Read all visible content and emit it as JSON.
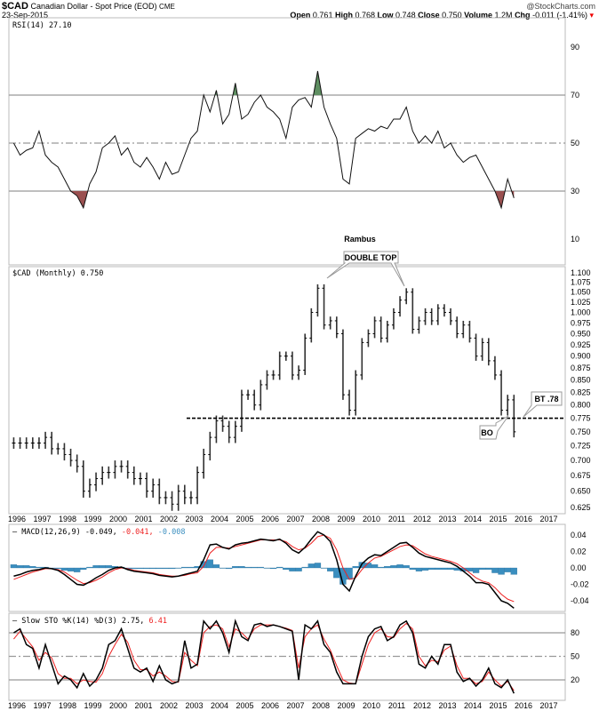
{
  "header": {
    "symbol": "$CAD",
    "name": "Canadian Dollar - Spot Price (EOD)",
    "exchange": "CME",
    "date": "23-Sep-2015",
    "copyright": "@StockCharts.com",
    "open_label": "Open",
    "open": "0.761",
    "high_label": "High",
    "high": "0.768",
    "low_label": "Low",
    "low": "0.748",
    "close_label": "Close",
    "close": "0.750",
    "volume_label": "Volume",
    "volume": "1.2M",
    "chg_label": "Chg",
    "chg": "-0.011 (-1.41%)",
    "chg_icon": "down-triangle-icon"
  },
  "colors": {
    "price": "#333333",
    "macd": "#000000",
    "signal": "#ee2222",
    "histogram": "#3a8ebf",
    "overbought_fill": "#5f8f62",
    "oversold_fill": "#9a5050",
    "annotation_text": "#0000ee"
  },
  "chart_data": [
    {
      "type": "line",
      "panel": "rsi",
      "legend": "RSI(14) 27.10",
      "start": "1995-10",
      "interval": "quarterly",
      "ylim": [
        0,
        100
      ],
      "yticks": [
        10,
        30,
        50,
        70,
        90
      ],
      "reference_lines": [
        30,
        50,
        70
      ],
      "values": [
        50,
        45,
        47,
        48,
        55,
        45,
        42,
        40,
        35,
        30,
        28,
        23,
        33,
        38,
        48,
        50,
        53,
        45,
        48,
        42,
        40,
        44,
        40,
        35,
        42,
        37,
        38,
        45,
        52,
        55,
        70,
        63,
        72,
        58,
        62,
        75,
        60,
        62,
        67,
        70,
        65,
        63,
        60,
        52,
        65,
        68,
        69,
        65,
        80,
        65,
        58,
        52,
        35,
        33,
        52,
        54,
        56,
        55,
        57,
        56,
        60,
        60,
        65,
        55,
        50,
        53,
        50,
        55,
        48,
        50,
        45,
        42,
        44,
        45,
        40,
        35,
        30,
        23,
        35,
        27.1
      ]
    },
    {
      "type": "ohlc",
      "panel": "price",
      "legend": "$CAD (Monthly) 0.750",
      "start": "1995-10",
      "interval": "quarterly",
      "scale": "log",
      "ylim": [
        0.615,
        1.11
      ],
      "yticks": [
        "0.625",
        "0.650",
        "0.675",
        "0.700",
        "0.725",
        "0.750",
        "0.775",
        "0.800",
        "0.825",
        "0.850",
        "0.875",
        "0.900",
        "0.925",
        "0.950",
        "0.975",
        "1.000",
        "1.025",
        "1.050",
        "1.075",
        "1.100"
      ],
      "close": [
        0.73,
        0.73,
        0.73,
        0.73,
        0.73,
        0.74,
        0.72,
        0.72,
        0.71,
        0.7,
        0.69,
        0.65,
        0.66,
        0.67,
        0.68,
        0.68,
        0.69,
        0.69,
        0.68,
        0.67,
        0.67,
        0.65,
        0.66,
        0.64,
        0.64,
        0.63,
        0.65,
        0.64,
        0.64,
        0.68,
        0.71,
        0.74,
        0.77,
        0.76,
        0.74,
        0.76,
        0.82,
        0.82,
        0.8,
        0.84,
        0.86,
        0.86,
        0.9,
        0.9,
        0.86,
        0.87,
        0.94,
        1.0,
        1.06,
        0.97,
        0.98,
        0.95,
        0.82,
        0.79,
        0.86,
        0.93,
        0.95,
        0.98,
        0.94,
        0.97,
        1.0,
        1.03,
        1.05,
        0.96,
        0.98,
        1.0,
        0.98,
        1.01,
        1.0,
        0.98,
        0.95,
        0.97,
        0.94,
        0.9,
        0.93,
        0.89,
        0.86,
        0.79,
        0.81,
        0.75
      ],
      "support_line": 0.775,
      "annotations": {
        "watermark": "Rambus",
        "double_top": "DOUBLE TOP",
        "breakout": "BO",
        "backtest": "BT .78"
      }
    },
    {
      "type": "line",
      "panel": "macd",
      "legend": {
        "name": "MACD(12,26,9)",
        "macd": "-0.049",
        "signal": "-0.041",
        "histogram": "-0.008"
      },
      "start": "1995-10",
      "interval": "quarterly",
      "ylim": [
        -0.052,
        0.048
      ],
      "yticks": [
        "-0.04",
        "-0.02",
        "0.00",
        "0.02",
        "0.04"
      ],
      "macd": [
        -0.01,
        -0.008,
        -0.005,
        -0.003,
        -0.002,
        0.0,
        -0.001,
        -0.003,
        -0.008,
        -0.014,
        -0.02,
        -0.021,
        -0.017,
        -0.012,
        -0.008,
        -0.003,
        0.0,
        0.001,
        -0.002,
        -0.004,
        -0.005,
        -0.006,
        -0.007,
        -0.009,
        -0.01,
        -0.011,
        -0.01,
        -0.008,
        -0.006,
        -0.004,
        0.01,
        0.028,
        0.029,
        0.025,
        0.023,
        0.028,
        0.03,
        0.031,
        0.033,
        0.035,
        0.034,
        0.033,
        0.035,
        0.03,
        0.022,
        0.018,
        0.025,
        0.035,
        0.044,
        0.04,
        0.032,
        0.01,
        -0.02,
        -0.028,
        -0.01,
        0.005,
        0.012,
        0.016,
        0.015,
        0.02,
        0.025,
        0.03,
        0.031,
        0.025,
        0.018,
        0.014,
        0.012,
        0.01,
        0.008,
        0.006,
        0.002,
        -0.004,
        -0.01,
        -0.018,
        -0.018,
        -0.02,
        -0.03,
        -0.04,
        -0.043,
        -0.049
      ],
      "signal": [
        -0.014,
        -0.011,
        -0.008,
        -0.005,
        -0.003,
        -0.001,
        -0.001,
        -0.002,
        -0.005,
        -0.01,
        -0.015,
        -0.019,
        -0.018,
        -0.015,
        -0.011,
        -0.006,
        -0.002,
        0.0,
        -0.001,
        -0.003,
        -0.004,
        -0.005,
        -0.006,
        -0.008,
        -0.009,
        -0.01,
        -0.01,
        -0.009,
        -0.007,
        -0.006,
        0.002,
        0.018,
        0.025,
        0.025,
        0.024,
        0.026,
        0.028,
        0.03,
        0.032,
        0.034,
        0.034,
        0.034,
        0.034,
        0.032,
        0.026,
        0.022,
        0.024,
        0.03,
        0.038,
        0.04,
        0.036,
        0.022,
        0.0,
        -0.014,
        -0.012,
        -0.002,
        0.006,
        0.012,
        0.014,
        0.018,
        0.022,
        0.026,
        0.028,
        0.027,
        0.022,
        0.017,
        0.014,
        0.012,
        0.01,
        0.008,
        0.005,
        0.0,
        -0.006,
        -0.012,
        -0.016,
        -0.018,
        -0.024,
        -0.032,
        -0.038,
        -0.041
      ]
    },
    {
      "type": "line",
      "panel": "stochastic",
      "legend": {
        "name": "Slow STO %K(14) %D(3)",
        "k": "2.75",
        "d": "6.41"
      },
      "start": "1995-10",
      "interval": "quarterly",
      "ylim": [
        -2,
        104
      ],
      "yticks": [
        20,
        50,
        80
      ],
      "reference_lines": [
        20,
        50,
        80
      ],
      "k": [
        80,
        85,
        65,
        60,
        35,
        65,
        40,
        15,
        25,
        20,
        10,
        28,
        12,
        20,
        35,
        65,
        70,
        85,
        60,
        35,
        30,
        35,
        18,
        38,
        20,
        15,
        18,
        70,
        35,
        40,
        95,
        85,
        95,
        80,
        55,
        95,
        75,
        70,
        90,
        92,
        88,
        90,
        88,
        85,
        82,
        20,
        90,
        85,
        95,
        65,
        55,
        30,
        15,
        15,
        15,
        50,
        75,
        85,
        88,
        70,
        75,
        90,
        95,
        80,
        40,
        35,
        50,
        40,
        65,
        65,
        30,
        18,
        22,
        12,
        20,
        35,
        15,
        10,
        20,
        2.75
      ],
      "d": [
        72,
        82,
        72,
        62,
        45,
        55,
        48,
        28,
        22,
        22,
        15,
        20,
        18,
        17,
        28,
        50,
        65,
        78,
        68,
        45,
        33,
        33,
        25,
        30,
        25,
        18,
        17,
        55,
        45,
        38,
        80,
        88,
        90,
        85,
        62,
        85,
        80,
        72,
        85,
        90,
        90,
        90,
        88,
        86,
        83,
        35,
        75,
        85,
        90,
        72,
        58,
        38,
        20,
        16,
        15,
        40,
        65,
        80,
        85,
        75,
        74,
        85,
        92,
        85,
        50,
        38,
        45,
        43,
        58,
        63,
        38,
        22,
        22,
        15,
        18,
        30,
        20,
        12,
        18,
        6.41
      ]
    }
  ],
  "x_axis": {
    "ticks": [
      "1996",
      "1997",
      "1998",
      "1999",
      "2000",
      "2001",
      "2002",
      "2003",
      "2004",
      "2005",
      "2006",
      "2007",
      "2008",
      "2009",
      "2010",
      "2011",
      "2012",
      "2013",
      "2014",
      "2015",
      "2016",
      "2017"
    ]
  }
}
